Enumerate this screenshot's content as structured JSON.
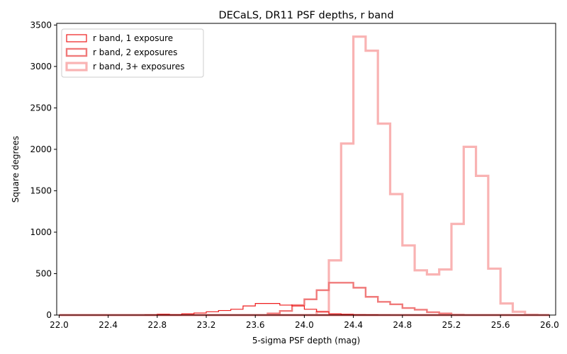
{
  "chart_data": {
    "type": "histogram-step",
    "title": "DECaLS, DR11 PSF depths, r band",
    "xlabel": "5-sigma PSF depth (mag)",
    "ylabel": "Square degrees",
    "xlim": [
      21.98,
      26.05
    ],
    "ylim": [
      0,
      3520
    ],
    "x_ticks": [
      22.0,
      22.4,
      22.8,
      23.2,
      23.6,
      24.0,
      24.4,
      24.8,
      25.2,
      25.6,
      26.0
    ],
    "x_tick_labels": [
      "22.0",
      "22.4",
      "22.8",
      "23.2",
      "23.6",
      "24.0",
      "24.4",
      "24.8",
      "25.2",
      "25.6",
      "26.0"
    ],
    "y_ticks": [
      0,
      500,
      1000,
      1500,
      2000,
      2500,
      3000,
      3500
    ],
    "y_tick_labels": [
      "0",
      "500",
      "1000",
      "1500",
      "2000",
      "2500",
      "3000",
      "3500"
    ],
    "bin_start": 22.0,
    "bin_width": 0.1,
    "legend_position": "upper-left",
    "series": [
      {
        "name": "r band, 1 exposure",
        "color": "#ee1c1c",
        "line_width": 1.2,
        "values": [
          0,
          0,
          0,
          0,
          0,
          0,
          0,
          2,
          10,
          5,
          15,
          25,
          40,
          55,
          70,
          110,
          140,
          140,
          120,
          110,
          70,
          40,
          15,
          10,
          5,
          3,
          1,
          0,
          0,
          0,
          0,
          0,
          0,
          0,
          0,
          0,
          0,
          0,
          0,
          0
        ]
      },
      {
        "name": "r band, 2 exposures",
        "color": "#f07b7b",
        "line_width": 2.4,
        "values": [
          0,
          0,
          0,
          0,
          0,
          0,
          0,
          0,
          0,
          0,
          0,
          0,
          0,
          0,
          0,
          0,
          0,
          20,
          50,
          120,
          190,
          300,
          390,
          390,
          330,
          220,
          160,
          130,
          85,
          65,
          35,
          20,
          5,
          0,
          0,
          0,
          0,
          0,
          0,
          0
        ]
      },
      {
        "name": "r band, 3+ exposures",
        "color": "#f9b3b3",
        "line_width": 3.2,
        "values": [
          0,
          0,
          0,
          0,
          0,
          0,
          0,
          0,
          0,
          0,
          0,
          0,
          0,
          0,
          0,
          0,
          0,
          0,
          0,
          0,
          0,
          40,
          660,
          2070,
          3360,
          3190,
          2310,
          1460,
          840,
          540,
          490,
          550,
          1100,
          2030,
          1680,
          560,
          140,
          40,
          5,
          0
        ]
      }
    ]
  }
}
